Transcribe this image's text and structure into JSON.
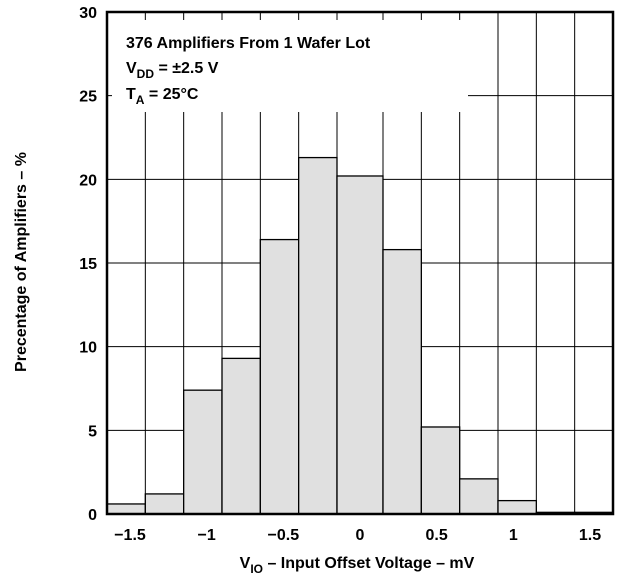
{
  "chart_data": {
    "type": "bar",
    "subtype": "histogram",
    "xlabel": {
      "main": "V",
      "sub": "IO",
      "rest": " – Input Offset Voltage – mV"
    },
    "ylabel": "Precentage of Amplifiers – %",
    "xlim": [
      -1.65,
      1.65
    ],
    "ylim": [
      0,
      30
    ],
    "x_ticks": [
      -1.5,
      -1,
      -0.5,
      0,
      0.5,
      1,
      1.5
    ],
    "x_tick_labels": [
      "−1.5",
      "−1",
      "−0.5",
      "0",
      "0.5",
      "1",
      "1.5"
    ],
    "y_ticks": [
      0,
      5,
      10,
      15,
      20,
      25,
      30
    ],
    "y_tick_labels": [
      "0",
      "5",
      "10",
      "15",
      "20",
      "25",
      "30"
    ],
    "grid": true,
    "bin_edges": [
      -1.65,
      -1.4,
      -1.15,
      -0.9,
      -0.65,
      -0.4,
      -0.15,
      0.15,
      0.4,
      0.65,
      0.9,
      1.15,
      1.4,
      1.65
    ],
    "values": [
      0.6,
      1.2,
      7.4,
      9.3,
      16.4,
      21.3,
      20.2,
      15.8,
      5.2,
      2.1,
      0.8,
      0.1,
      0.1
    ],
    "bar_color": "#e0e0e0",
    "annotations": [
      {
        "main": "376 Amplifiers From 1 Wafer Lot",
        "sub": "",
        "rest": ""
      },
      {
        "main": "V",
        "sub": "DD",
        "rest": " = ±2.5 V"
      },
      {
        "main": "T",
        "sub": "A",
        "rest": " = 25°C"
      }
    ]
  }
}
